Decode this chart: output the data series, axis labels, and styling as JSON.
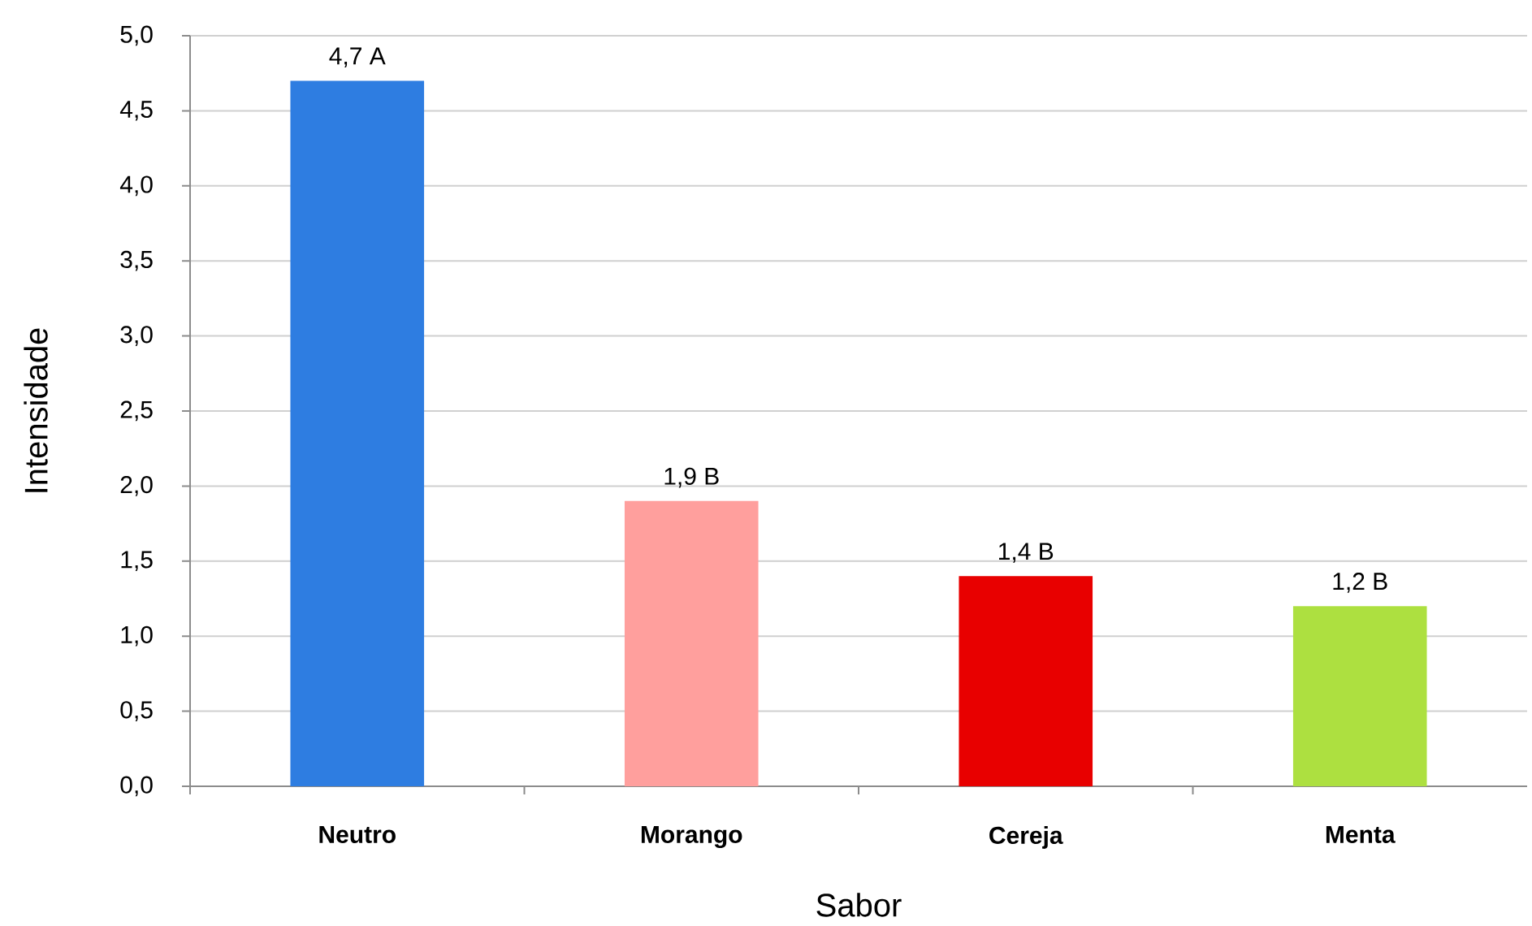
{
  "chart_data": {
    "type": "bar",
    "xlabel": "Sabor",
    "ylabel": "Intensidade",
    "categories": [
      "Neutro",
      "Morango",
      "Cereja",
      "Menta"
    ],
    "values": [
      4.7,
      1.9,
      1.4,
      1.2
    ],
    "colors": [
      "#2e7de1",
      "#ff9f9d",
      "#e80000",
      "#ade040"
    ],
    "value_labels": [
      "4,7 A",
      "1,9 B",
      "1,4 B",
      "1,2 B"
    ],
    "ylim": [
      0,
      5
    ],
    "yticks": [
      {
        "value": 0,
        "label": "0,0"
      },
      {
        "value": 0.5,
        "label": "0,5"
      },
      {
        "value": 1,
        "label": "1,0"
      },
      {
        "value": 1.5,
        "label": "1,5"
      },
      {
        "value": 2,
        "label": "2,0"
      },
      {
        "value": 2.5,
        "label": "2,5"
      },
      {
        "value": 3,
        "label": "3,0"
      },
      {
        "value": 3.5,
        "label": "3,5"
      },
      {
        "value": 4,
        "label": "4,0"
      },
      {
        "value": 4.5,
        "label": "4,5"
      },
      {
        "value": 5,
        "label": "5,0"
      }
    ],
    "grid": "y"
  }
}
